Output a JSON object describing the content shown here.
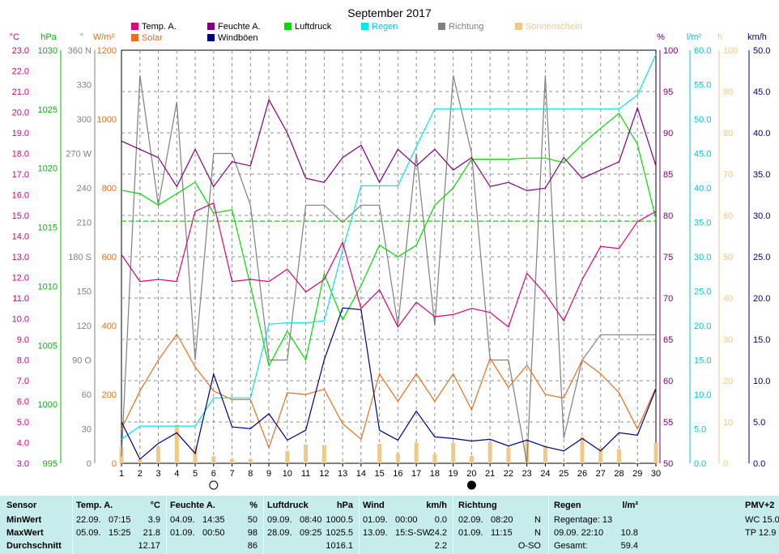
{
  "chart_data": {
    "type": "line",
    "title": "September 2017",
    "x": [
      1,
      2,
      3,
      4,
      5,
      6,
      7,
      8,
      9,
      10,
      11,
      12,
      13,
      14,
      15,
      16,
      17,
      18,
      19,
      20,
      21,
      22,
      23,
      24,
      25,
      26,
      27,
      28,
      29,
      30
    ],
    "axes": [
      {
        "id": "temp",
        "unit": "°C",
        "color": "#e0007a",
        "range": [
          3,
          23
        ],
        "ticks": [
          "23.0",
          "22.0",
          "21.0",
          "20.0",
          "19.0",
          "18.0",
          "17.0",
          "16.0",
          "15.0",
          "14.0",
          "13.0",
          "12.0",
          "11.0",
          "10.0",
          "9.0",
          "8.0",
          "7.0",
          "6.0",
          "5.0",
          "4.0",
          "3.0"
        ]
      },
      {
        "id": "press",
        "unit": "hPa",
        "color": "#00bb00",
        "range": [
          995,
          1031
        ],
        "ticks": [
          "1030",
          "1025",
          "1020",
          "1015",
          "1010",
          "1005",
          "1000",
          "995"
        ]
      },
      {
        "id": "dir",
        "unit": "°",
        "color": "#808080",
        "range": [
          0,
          360
        ],
        "ticks": [
          "360 N",
          "330",
          "300",
          "270 W",
          "240",
          "210",
          "180 S",
          "150",
          "120",
          "90  O",
          "60",
          "30",
          "0"
        ]
      },
      {
        "id": "solar",
        "unit": "W/m²",
        "color": "#e87020",
        "range": [
          0,
          1200
        ],
        "ticks": [
          "1200",
          "1000",
          "800",
          "600",
          "400",
          "200",
          "0"
        ]
      },
      {
        "id": "hum",
        "unit": "%",
        "color": "#800080",
        "range": [
          50,
          100
        ],
        "ticks": [
          "100",
          "95",
          "90",
          "85",
          "80",
          "75",
          "70",
          "65",
          "60",
          "55",
          "50"
        ]
      },
      {
        "id": "rain",
        "unit": "l/m²",
        "color": "#00c8d8",
        "range": [
          0,
          60
        ],
        "ticks": [
          "60.0",
          "55.0",
          "50.0",
          "45.0",
          "40.0",
          "35.0",
          "30.0",
          "25.0",
          "20.0",
          "15.0",
          "10.0",
          "5.0",
          "0.0"
        ]
      },
      {
        "id": "sun",
        "unit": "h",
        "color": "#f0c888",
        "range": [
          0,
          100
        ],
        "ticks": [
          "100",
          "90",
          "80",
          "70",
          "60",
          "50",
          "40",
          "30",
          "20",
          "10",
          "0"
        ]
      },
      {
        "id": "wind",
        "unit": "km/h",
        "color": "#000080",
        "range": [
          0,
          50
        ],
        "ticks": [
          "50.0",
          "45.0",
          "40.0",
          "35.0",
          "30.0",
          "25.0",
          "20.0",
          "15.0",
          "10.0",
          "5.0",
          "0.0"
        ]
      }
    ],
    "legend": [
      {
        "label": "Temp. A.",
        "color": "#e0007a"
      },
      {
        "label": "Solar",
        "color": "#e87020"
      },
      {
        "label": "Feuchte A.",
        "color": "#800080"
      },
      {
        "label": "Windböen",
        "color": "#000080"
      },
      {
        "label": "Luftdruck",
        "color": "#00dd00"
      },
      {
        "label": "Regen",
        "color": "#00e8e8"
      },
      {
        "label": "Richtung",
        "color": "#808080"
      },
      {
        "label": "Sonnenschein",
        "color": "#f0c888"
      }
    ],
    "series": [
      {
        "name": "Temp. A.",
        "axis": "temp",
        "color": "#e0007a",
        "values": [
          13.1,
          11.8,
          11.9,
          11.8,
          15.2,
          15.6,
          11.8,
          11.9,
          11.8,
          12.4,
          11.3,
          11.9,
          13.7,
          10.5,
          11.4,
          9.6,
          10.8,
          10.1,
          10.2,
          10.5,
          10.3,
          9.6,
          12.2,
          11.2,
          9.9,
          11.9,
          13.5,
          13.4,
          14.7,
          15.2
        ]
      },
      {
        "name": "Feuchte A.",
        "axis": "hum",
        "color": "#800080",
        "values": [
          89,
          88,
          87,
          83.5,
          88,
          83.5,
          86.5,
          86,
          94,
          90,
          84.5,
          84,
          87,
          88.5,
          84,
          88,
          86,
          88,
          85.5,
          87,
          83.5,
          84,
          83,
          83.3,
          87,
          84.5,
          85.5,
          86.5,
          93,
          86
        ]
      },
      {
        "name": "Luftdruck",
        "axis": "press",
        "color": "#00dd00",
        "values": [
          1018.8,
          1018.5,
          1017.5,
          1018.5,
          1019.5,
          1016.8,
          1017.1,
          1010.5,
          1003.5,
          1006.5,
          1004,
          1011.5,
          1007.5,
          1010.5,
          1014,
          1013,
          1014,
          1017.5,
          1019,
          1021.5,
          1021.5,
          1021.5,
          1021.6,
          1021.6,
          1021.2,
          1022.8,
          1024.2,
          1025.5,
          1022.8,
          1016.3
        ]
      },
      {
        "name": "Luftdruck Mittel",
        "axis": "press",
        "color": "#00dd00",
        "dashed": true,
        "values": [
          1016.1,
          1016.1,
          1016.1,
          1016.1,
          1016.1,
          1016.1,
          1016.1,
          1016.1,
          1016.1,
          1016.1,
          1016.1,
          1016.1,
          1016.1,
          1016.1,
          1016.1,
          1016.1,
          1016.1,
          1016.1,
          1016.1,
          1016.1,
          1016.1,
          1016.1,
          1016.1,
          1016.1,
          1016.1,
          1016.1,
          1016.1,
          1016.1,
          1016.1,
          1016.1
        ]
      },
      {
        "name": "Regen",
        "axis": "rain",
        "color": "#00e8e8",
        "values": [
          3.5,
          5.4,
          5.4,
          5.4,
          5.4,
          9.5,
          9.5,
          9.5,
          20.2,
          20.4,
          20.4,
          20.7,
          31,
          40.3,
          40.3,
          40.3,
          46,
          51.5,
          51.5,
          51.5,
          51.5,
          51.5,
          51.5,
          51.5,
          51.5,
          51.5,
          51.5,
          51.5,
          53.5,
          59.4
        ]
      },
      {
        "name": "Richtung",
        "axis": "dir",
        "color": "#808080",
        "values": [
          6,
          338,
          225,
          315,
          90,
          270,
          270,
          225,
          90,
          90,
          225,
          225,
          210,
          225,
          225,
          120,
          270,
          120,
          338,
          270,
          90,
          90,
          0,
          338,
          22,
          90,
          112,
          112,
          112,
          112
        ]
      },
      {
        "name": "Solar",
        "axis": "solar",
        "color": "#e87020",
        "values": [
          100,
          210,
          300,
          375,
          280,
          210,
          185,
          185,
          45,
          205,
          200,
          215,
          115,
          70,
          260,
          180,
          260,
          180,
          260,
          155,
          305,
          220,
          285,
          200,
          190,
          300,
          260,
          205,
          100,
          220
        ]
      },
      {
        "name": "Windböen",
        "axis": "wind",
        "color": "#000080",
        "values": [
          5,
          0.5,
          2.4,
          3.7,
          1.2,
          10.8,
          4.4,
          4.2,
          6,
          2.8,
          4,
          12.5,
          18.8,
          18.6,
          4,
          2.8,
          6.3,
          3.2,
          3,
          2.7,
          2.9,
          2.1,
          2.8,
          2,
          1.5,
          3,
          1.5,
          3.7,
          3.4,
          9
        ]
      },
      {
        "name": "Sonnenschein",
        "axis": "sun",
        "color": "#f0c888",
        "type": "bar",
        "values": [
          4,
          1,
          4,
          9.3,
          4,
          1.7,
          1,
          1,
          0,
          3,
          4.5,
          4.4,
          0.3,
          0.4,
          4.7,
          2.3,
          5,
          2.2,
          5,
          1.8,
          5.2,
          3.7,
          5,
          4.2,
          0.3,
          6.4,
          3.8,
          3.4,
          0.1,
          5
        ]
      }
    ],
    "moon_phases": [
      {
        "day": 6,
        "phase": "full"
      },
      {
        "day": 20,
        "phase": "new"
      }
    ],
    "grid": true,
    "legend_position": "top"
  },
  "stats": {
    "sensor": {
      "header": "Sensor",
      "rows": [
        "MinWert",
        "MaxWert",
        "Durchschnitt"
      ]
    },
    "temp": {
      "header": "Temp. A.",
      "unit": "°C",
      "rows": [
        [
          "22.09.",
          "07:15",
          "3.9"
        ],
        [
          "05.09.",
          "15:25",
          "21.8"
        ],
        [
          "",
          "",
          "12.17"
        ]
      ]
    },
    "hum": {
      "header": "Feuchte A.",
      "unit": "%",
      "rows": [
        [
          "04.09.",
          "14:35",
          "50"
        ],
        [
          "01.09.",
          "00:50",
          "98"
        ],
        [
          "",
          "",
          "86"
        ]
      ]
    },
    "press": {
      "header": "Luftdruck",
      "unit": "hPa",
      "rows": [
        [
          "09.09.",
          "08:40",
          "1000.5"
        ],
        [
          "28.09.",
          "09:25",
          "1025.5"
        ],
        [
          "",
          "",
          "1016.1"
        ]
      ]
    },
    "wind": {
      "header": "Wind",
      "unit": "km/h",
      "rows": [
        [
          "01.09.",
          "00:00",
          "0.0"
        ],
        [
          "13.09.",
          "15:S-SW",
          "24.2"
        ],
        [
          "",
          "",
          "2.2"
        ]
      ]
    },
    "dir": {
      "header": "Richtung",
      "rows": [
        [
          "02.09.",
          "08:20",
          "N"
        ],
        [
          "01.09.",
          "11:15",
          "N"
        ],
        [
          "",
          "",
          "O-SO"
        ]
      ]
    },
    "rain": {
      "header": "Regen",
      "unit": "l/m²",
      "rows": [
        [
          "Regentage: 13",
          ""
        ],
        [
          "09.09.  22:10",
          "10.8"
        ],
        [
          "Gesamt:",
          "59.4"
        ]
      ]
    },
    "pmv": {
      "header": "PMV+2",
      "rows": [
        "WC 15.0",
        "TP 12.9"
      ]
    }
  }
}
